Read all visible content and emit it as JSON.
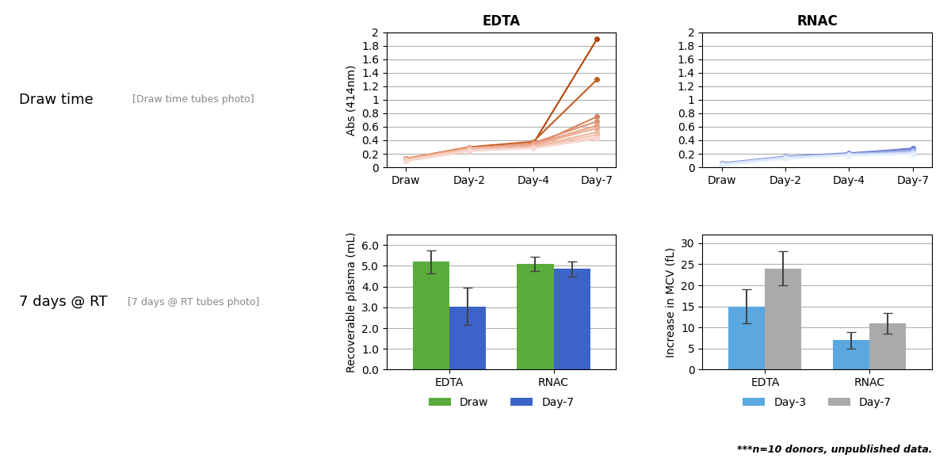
{
  "annotations": [
    "Draw time",
    "[Draw time tubes photo]",
    "7 days @ RT",
    "[7 days @ RT tubes photo]",
    "***n=10 donors, unpublished data."
  ],
  "chart_data": [
    {
      "type": "line",
      "title": "EDTA",
      "y_label": "Abs (414nm)",
      "categories": [
        "Draw",
        "Day-2",
        "Day-4",
        "Day-7"
      ],
      "marker": "o",
      "grid": "y",
      "ylim": [
        0,
        2
      ],
      "yticks": [
        0,
        0.2,
        0.4,
        0.6,
        0.8,
        1,
        1.2,
        1.4,
        1.6,
        1.8,
        2
      ],
      "series": [
        {
          "color": "#b5440a",
          "values": [
            0.12,
            0.28,
            0.35,
            1.9
          ]
        },
        {
          "color": "#c45e20",
          "values": [
            0.13,
            0.3,
            0.38,
            1.3
          ]
        },
        {
          "color": "#d4845a",
          "values": [
            0.1,
            0.25,
            0.32,
            0.75
          ]
        },
        {
          "color": "#de9070",
          "values": [
            0.11,
            0.27,
            0.36,
            0.68
          ]
        },
        {
          "color": "#e8a080",
          "values": [
            0.13,
            0.29,
            0.34,
            0.62
          ]
        },
        {
          "color": "#eeaa90",
          "values": [
            0.12,
            0.28,
            0.33,
            0.58
          ]
        },
        {
          "color": "#f0b8a0",
          "values": [
            0.1,
            0.26,
            0.31,
            0.52
          ]
        },
        {
          "color": "#f2c0ac",
          "values": [
            0.11,
            0.27,
            0.3,
            0.48
          ]
        },
        {
          "color": "#f5ccc0",
          "values": [
            0.09,
            0.24,
            0.29,
            0.44
          ]
        },
        {
          "color": "#f8d8d0",
          "values": [
            0.1,
            0.25,
            0.28,
            0.42
          ]
        }
      ]
    },
    {
      "type": "line",
      "title": "RNAC",
      "categories": [
        "Draw",
        "Day-2",
        "Day-4",
        "Day-7"
      ],
      "marker": "o",
      "grid": "y",
      "ylim": [
        0,
        2
      ],
      "yticks": [
        0,
        0.2,
        0.4,
        0.6,
        0.8,
        1,
        1.2,
        1.4,
        1.6,
        1.8,
        2
      ],
      "series": [
        {
          "color": "#6070c8",
          "values": [
            0.05,
            0.15,
            0.2,
            0.28
          ]
        },
        {
          "color": "#7080d0",
          "values": [
            0.06,
            0.16,
            0.21,
            0.27
          ]
        },
        {
          "color": "#8090d8",
          "values": [
            0.05,
            0.14,
            0.19,
            0.26
          ]
        },
        {
          "color": "#90a0e0",
          "values": [
            0.04,
            0.13,
            0.18,
            0.25
          ]
        },
        {
          "color": "#a0b0e8",
          "values": [
            0.05,
            0.15,
            0.2,
            0.24
          ]
        },
        {
          "color": "#b0c0f0",
          "values": [
            0.04,
            0.14,
            0.19,
            0.23
          ]
        },
        {
          "color": "#c0d0f8",
          "values": [
            0.03,
            0.13,
            0.18,
            0.22
          ]
        },
        {
          "color": "#d0e0fc",
          "values": [
            0.05,
            0.15,
            0.19,
            0.21
          ]
        },
        {
          "color": "#dce8fc",
          "values": [
            0.04,
            0.13,
            0.18,
            0.2
          ]
        },
        {
          "color": "#e8f0fe",
          "values": [
            0.03,
            0.12,
            0.17,
            0.19
          ]
        }
      ]
    },
    {
      "type": "bar",
      "y_label": "Recoverable plasma (mL)",
      "categories": [
        "EDTA",
        "RNAC"
      ],
      "grid": "y",
      "legend": "upper center",
      "ylim": [
        0,
        6.5
      ],
      "yticks": [
        {
          "value": 0,
          "label": "0.0"
        },
        {
          "value": 1,
          "label": "1.0"
        },
        {
          "value": 2,
          "label": "2.0"
        },
        {
          "value": 3,
          "label": "3.0"
        },
        {
          "value": 4,
          "label": "4.0"
        },
        {
          "value": 5,
          "label": "5.0"
        },
        {
          "value": 6,
          "label": "6.0"
        }
      ],
      "series": [
        {
          "name": "Draw",
          "color": "#5aac3c",
          "values": [
            5.2,
            5.1
          ],
          "errors": [
            0.55,
            0.35
          ]
        },
        {
          "name": "Day-7",
          "color": "#3c64c8",
          "values": [
            3.05,
            4.85
          ],
          "errors": [
            0.9,
            0.35
          ]
        }
      ]
    },
    {
      "type": "bar",
      "y_label": "Increase in MCV (fL)",
      "categories": [
        "EDTA",
        "RNAC"
      ],
      "grid": "y",
      "legend": "upper center",
      "ylim": [
        0,
        32
      ],
      "yticks": [
        0,
        5,
        10,
        15,
        20,
        25,
        30
      ],
      "series": [
        {
          "name": "Day-3",
          "color": "#5ba8e0",
          "values": [
            15,
            7
          ],
          "errors": [
            4,
            2
          ]
        },
        {
          "name": "Day-7",
          "color": "#aaaaaa",
          "values": [
            24,
            11
          ],
          "errors": [
            4,
            2.5
          ]
        }
      ]
    }
  ]
}
